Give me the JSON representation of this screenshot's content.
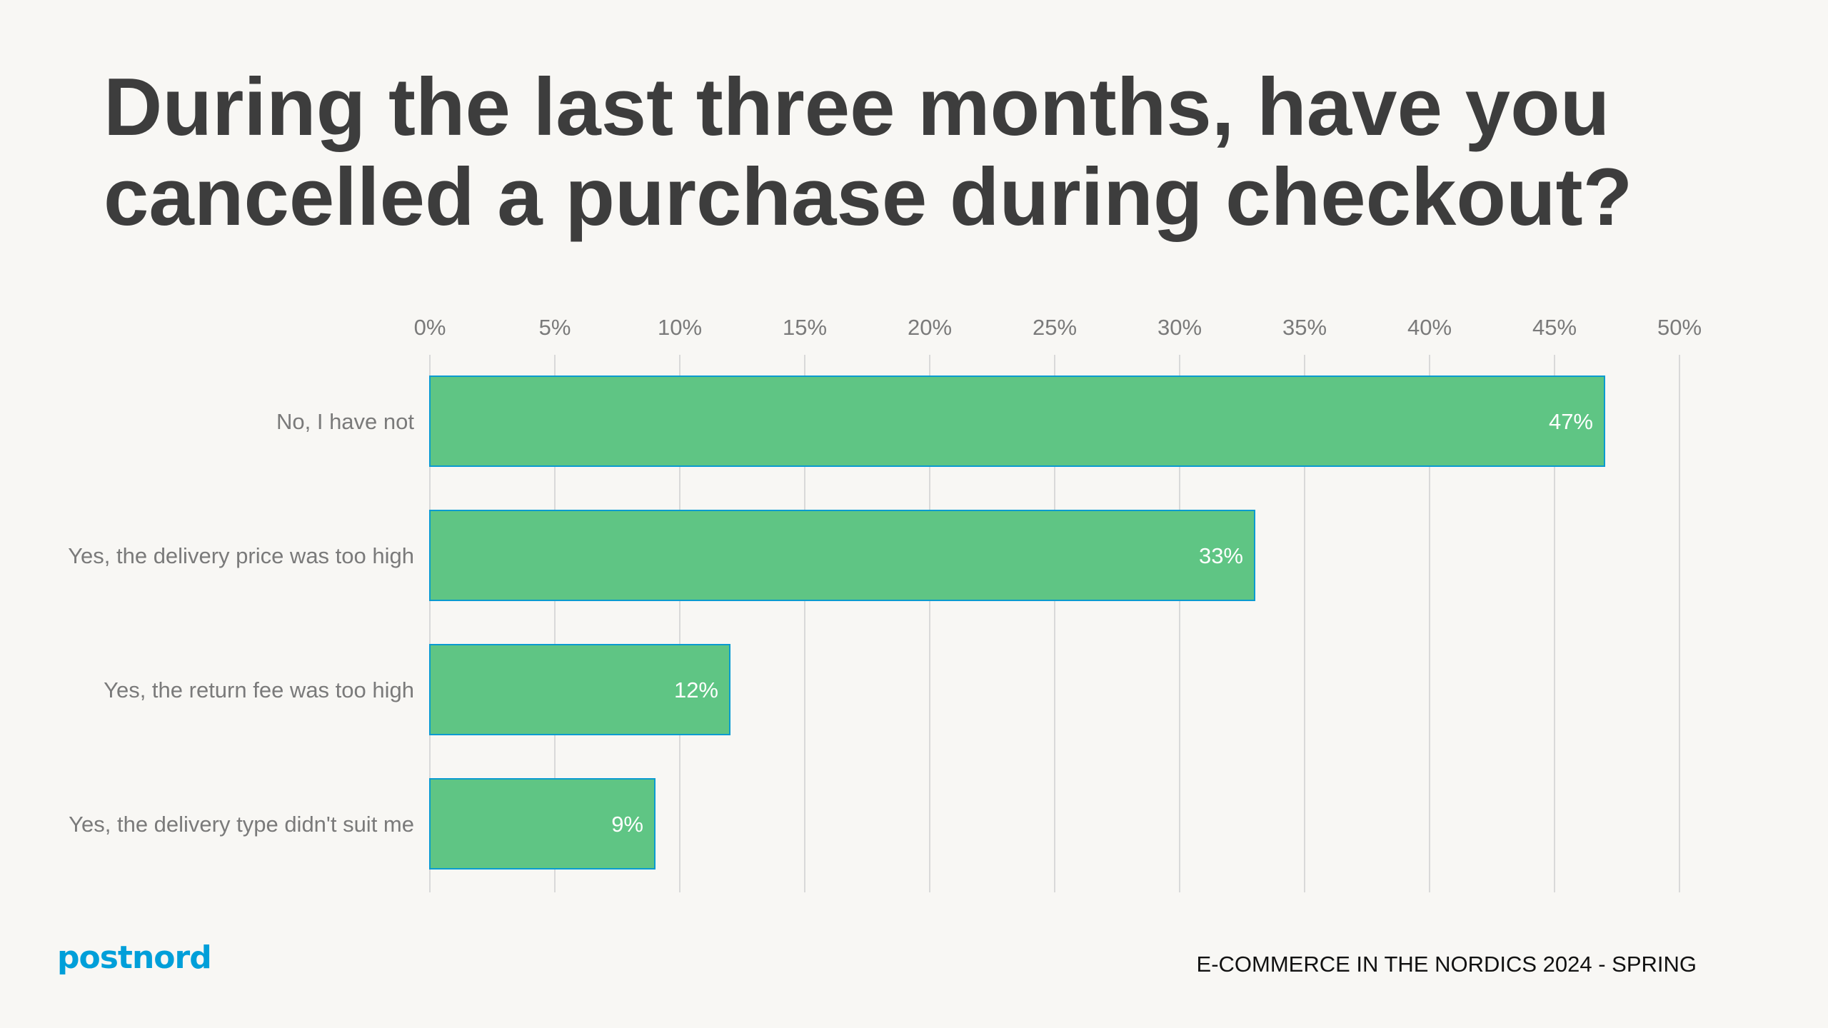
{
  "title": "During the last three months, have you cancelled a purchase during checkout?",
  "chart_data": {
    "type": "bar",
    "orientation": "horizontal",
    "categories": [
      "No, I have not",
      "Yes, the delivery price was too high",
      "Yes, the return fee was too high",
      "Yes, the delivery type didn't suit me"
    ],
    "values": [
      47,
      33,
      12,
      9
    ],
    "data_labels": [
      "47%",
      "33%",
      "12%",
      "9%"
    ],
    "xlim": [
      0,
      50
    ],
    "xticks": [
      0,
      5,
      10,
      15,
      20,
      25,
      30,
      35,
      40,
      45,
      50
    ],
    "xtick_labels": [
      "0%",
      "5%",
      "10%",
      "15%",
      "20%",
      "25%",
      "30%",
      "35%",
      "40%",
      "45%",
      "50%"
    ],
    "axis_position": "top",
    "grid": true,
    "colors": {
      "bar_fill": "#5fc584",
      "bar_border": "#0a9bd0",
      "grid": "#d9d9d9"
    }
  },
  "footer": {
    "logo": "postnord",
    "logo_color": "#009fd9",
    "report": "E-COMMERCE IN THE NORDICS 2024 - SPRING"
  }
}
